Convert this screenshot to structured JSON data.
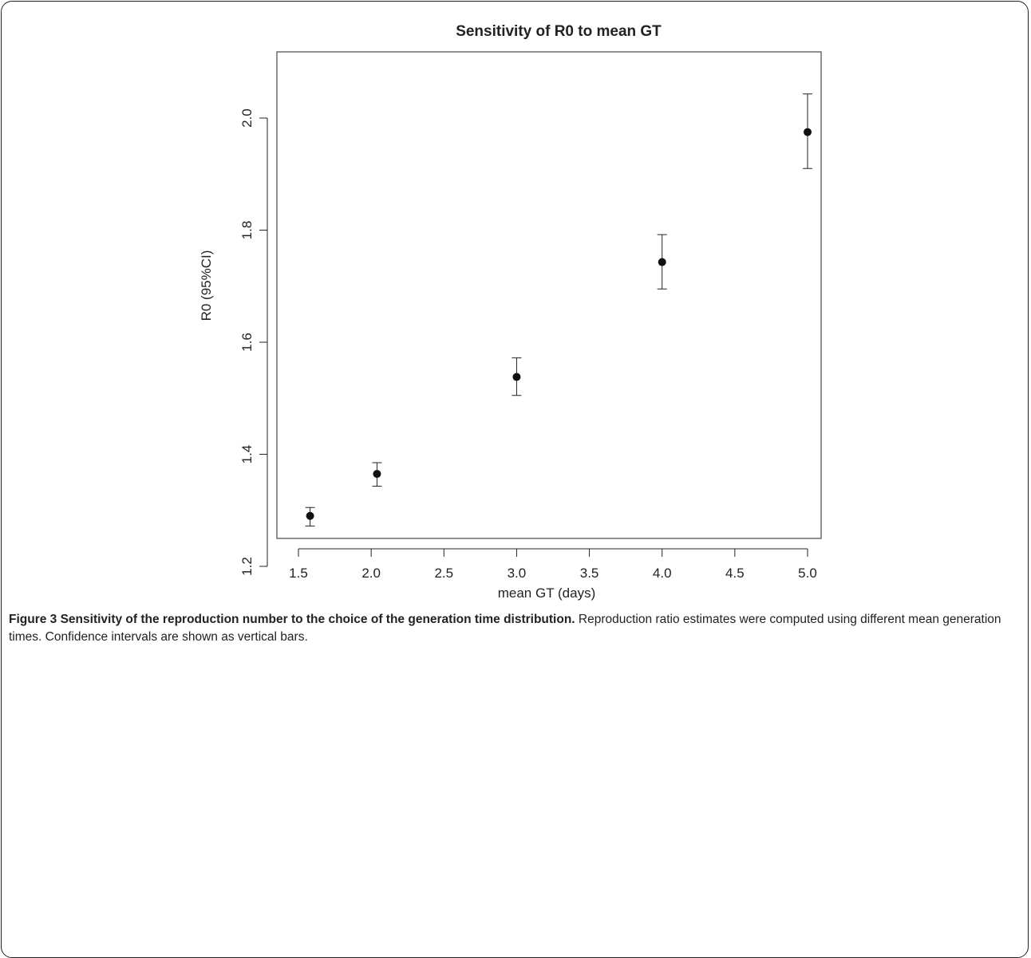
{
  "chart_data": {
    "type": "scatter",
    "title": "Sensitivity of R0 to mean GT",
    "xlabel": "mean GT (days)",
    "ylabel": "R0 (95%CI)",
    "xlim": [
      1.5,
      5.1
    ],
    "ylim": [
      1.18,
      2.14
    ],
    "x_ticks": [
      "1.5",
      "2.0",
      "2.5",
      "3.0",
      "3.5",
      "4.0",
      "4.5",
      "5.0"
    ],
    "y_ticks": [
      "1.2",
      "1.4",
      "1.6",
      "1.8",
      "2.0"
    ],
    "grid": false,
    "legend": "none",
    "points": [
      {
        "x": 1.58,
        "y": 1.29,
        "lo": 1.272,
        "hi": 1.305
      },
      {
        "x": 2.04,
        "y": 1.365,
        "lo": 1.343,
        "hi": 1.385
      },
      {
        "x": 3.0,
        "y": 1.538,
        "lo": 1.505,
        "hi": 1.572
      },
      {
        "x": 4.0,
        "y": 1.743,
        "lo": 1.695,
        "hi": 1.792
      },
      {
        "x": 5.0,
        "y": 1.975,
        "lo": 1.91,
        "hi": 2.043
      }
    ]
  },
  "caption": {
    "label": "Figure 3 Sensitivity of the reproduction number to the choice of the generation time distribution.",
    "text": " Reproduction ratio estimates were computed using different mean generation times. Confidence intervals are shown as vertical bars."
  }
}
